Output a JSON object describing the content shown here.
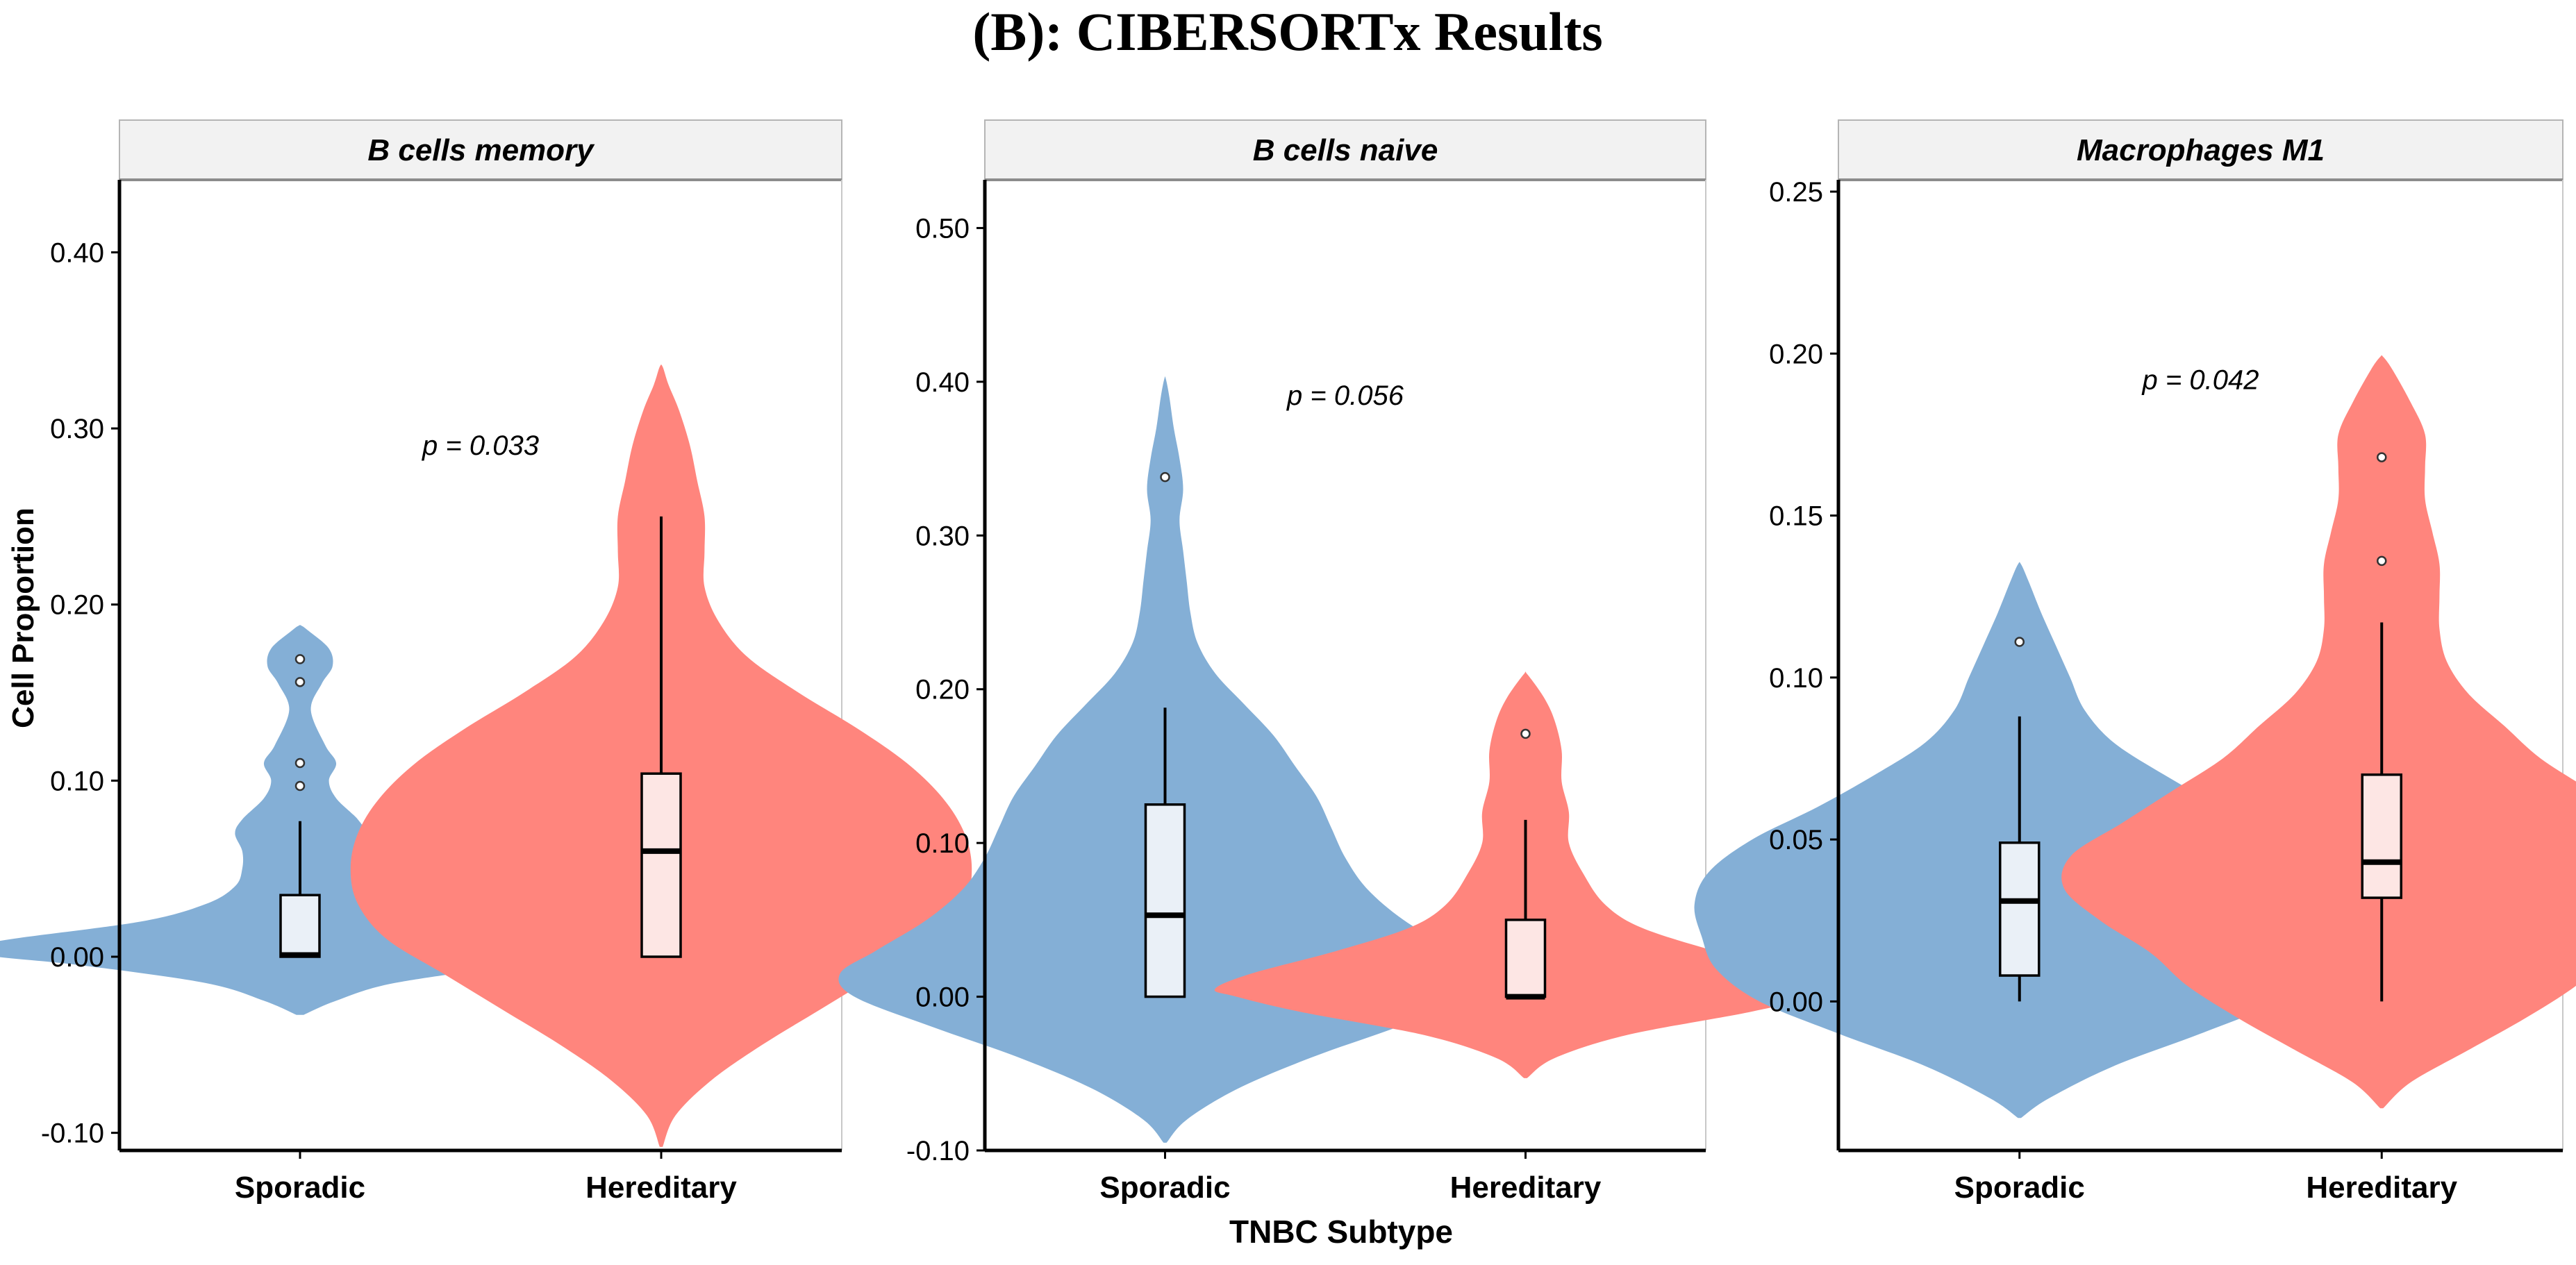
{
  "figure": {
    "title": "(B): CIBERSORTx Results",
    "y_axis_label": "Cell Proportion",
    "x_axis_label": "TNBC Subtype"
  },
  "colors": {
    "sporadic_fill": "#84AFD6",
    "hereditary_fill": "#FF857D",
    "sporadic_box": "#EAF0F7",
    "hereditary_box": "#FDE6E4",
    "strip_fill": "#F2F2F2",
    "axis": "#000000"
  },
  "chart_data": [
    {
      "type": "violin",
      "title": "B cells memory",
      "categories": [
        "Sporadic",
        "Hereditary"
      ],
      "ylim": [
        -0.11,
        0.44
      ],
      "yticks": [
        -0.1,
        0.0,
        0.1,
        0.2,
        0.3,
        0.4
      ],
      "ytick_labels": [
        "-0.10",
        "0.00",
        "0.10",
        "0.20",
        "0.30",
        "0.40"
      ],
      "annotation": {
        "text": "p = 0.033",
        "x": 1.5,
        "y": 0.285
      },
      "violins": [
        {
          "group": "Sporadic",
          "min": -0.033,
          "max": 0.188,
          "profile": [
            [
              -0.033,
              0.005
            ],
            [
              -0.025,
              0.05
            ],
            [
              -0.015,
              0.13
            ],
            [
              -0.005,
              0.3
            ],
            [
              0.0,
              0.42
            ],
            [
              0.004,
              0.47
            ],
            [
              0.01,
              0.4
            ],
            [
              0.02,
              0.22
            ],
            [
              0.03,
              0.13
            ],
            [
              0.04,
              0.09
            ],
            [
              0.05,
              0.08
            ],
            [
              0.06,
              0.08
            ],
            [
              0.07,
              0.09
            ],
            [
              0.078,
              0.08
            ],
            [
              0.09,
              0.05
            ],
            [
              0.1,
              0.04
            ],
            [
              0.11,
              0.05
            ],
            [
              0.12,
              0.035
            ],
            [
              0.14,
              0.015
            ],
            [
              0.155,
              0.03
            ],
            [
              0.165,
              0.045
            ],
            [
              0.175,
              0.04
            ],
            [
              0.185,
              0.012
            ],
            [
              0.188,
              0.002
            ]
          ],
          "box": {
            "q1": 0.0,
            "median": 0.001,
            "q3": 0.035,
            "whisker_low": 0.0,
            "whisker_high": 0.077
          },
          "outliers": [
            0.097,
            0.11,
            0.156,
            0.169
          ]
        },
        {
          "group": "Hereditary",
          "min": -0.108,
          "max": 0.335,
          "profile": [
            [
              -0.108,
              0.002
            ],
            [
              -0.09,
              0.02
            ],
            [
              -0.07,
              0.07
            ],
            [
              -0.05,
              0.14
            ],
            [
              -0.03,
              0.22
            ],
            [
              -0.01,
              0.3
            ],
            [
              0.01,
              0.38
            ],
            [
              0.03,
              0.42
            ],
            [
              0.05,
              0.43
            ],
            [
              0.07,
              0.42
            ],
            [
              0.09,
              0.39
            ],
            [
              0.11,
              0.34
            ],
            [
              0.13,
              0.27
            ],
            [
              0.15,
              0.19
            ],
            [
              0.17,
              0.12
            ],
            [
              0.19,
              0.08
            ],
            [
              0.21,
              0.06
            ],
            [
              0.23,
              0.06
            ],
            [
              0.25,
              0.06
            ],
            [
              0.27,
              0.05
            ],
            [
              0.29,
              0.04
            ],
            [
              0.31,
              0.025
            ],
            [
              0.325,
              0.01
            ],
            [
              0.335,
              0.002
            ]
          ],
          "box": {
            "q1": 0.0,
            "median": 0.06,
            "q3": 0.104,
            "whisker_low": 0.0,
            "whisker_high": 0.25
          },
          "outliers": []
        }
      ]
    },
    {
      "type": "violin",
      "title": "B cells naive",
      "categories": [
        "Sporadic",
        "Hereditary"
      ],
      "ylim": [
        -0.1,
        0.53
      ],
      "yticks": [
        -0.1,
        0.0,
        0.1,
        0.2,
        0.3,
        0.4,
        0.5
      ],
      "ytick_labels": [
        "-0.10",
        "0.00",
        "0.10",
        "0.20",
        "0.30",
        "0.40",
        "0.50"
      ],
      "annotation": {
        "text": "p = 0.056",
        "x": 1.5,
        "y": 0.385
      },
      "violins": [
        {
          "group": "Sporadic",
          "min": -0.095,
          "max": 0.402,
          "profile": [
            [
              -0.095,
              0.002
            ],
            [
              -0.08,
              0.03
            ],
            [
              -0.06,
              0.1
            ],
            [
              -0.04,
              0.2
            ],
            [
              -0.02,
              0.32
            ],
            [
              0.0,
              0.43
            ],
            [
              0.015,
              0.45
            ],
            [
              0.03,
              0.4
            ],
            [
              0.05,
              0.33
            ],
            [
              0.07,
              0.28
            ],
            [
              0.09,
              0.25
            ],
            [
              0.11,
              0.23
            ],
            [
              0.13,
              0.21
            ],
            [
              0.15,
              0.18
            ],
            [
              0.17,
              0.15
            ],
            [
              0.19,
              0.11
            ],
            [
              0.21,
              0.07
            ],
            [
              0.23,
              0.045
            ],
            [
              0.25,
              0.035
            ],
            [
              0.27,
              0.03
            ],
            [
              0.29,
              0.025
            ],
            [
              0.31,
              0.02
            ],
            [
              0.33,
              0.025
            ],
            [
              0.35,
              0.02
            ],
            [
              0.37,
              0.012
            ],
            [
              0.39,
              0.006
            ],
            [
              0.402,
              0.001
            ]
          ],
          "box": {
            "q1": 0.0,
            "median": 0.053,
            "q3": 0.125,
            "whisker_low": 0.0,
            "whisker_high": 0.188
          },
          "outliers": [
            0.338
          ]
        },
        {
          "group": "Hereditary",
          "min": -0.053,
          "max": 0.21,
          "profile": [
            [
              -0.053,
              0.002
            ],
            [
              -0.04,
              0.04
            ],
            [
              -0.025,
              0.14
            ],
            [
              -0.01,
              0.31
            ],
            [
              0.0,
              0.4
            ],
            [
              0.005,
              0.43
            ],
            [
              0.015,
              0.38
            ],
            [
              0.03,
              0.26
            ],
            [
              0.045,
              0.16
            ],
            [
              0.06,
              0.11
            ],
            [
              0.08,
              0.08
            ],
            [
              0.1,
              0.06
            ],
            [
              0.12,
              0.06
            ],
            [
              0.14,
              0.05
            ],
            [
              0.16,
              0.05
            ],
            [
              0.18,
              0.04
            ],
            [
              0.195,
              0.025
            ],
            [
              0.21,
              0.002
            ]
          ],
          "box": {
            "q1": 0.0,
            "median": 0.0,
            "q3": 0.05,
            "whisker_low": 0.0,
            "whisker_high": 0.115
          },
          "outliers": [
            0.171
          ]
        }
      ]
    },
    {
      "type": "violin",
      "title": "Macrophages M1",
      "categories": [
        "Sporadic",
        "Hereditary"
      ],
      "ylim": [
        -0.046,
        0.253
      ],
      "yticks": [
        0.0,
        0.05,
        0.1,
        0.15,
        0.2,
        0.25
      ],
      "ytick_labels": [
        "0.00",
        "0.05",
        "0.10",
        "0.15",
        "0.20",
        "0.25"
      ],
      "annotation": {
        "text": "p = 0.042",
        "x": 1.5,
        "y": 0.189
      },
      "violins": [
        {
          "group": "Sporadic",
          "min": -0.036,
          "max": 0.135,
          "profile": [
            [
              -0.036,
              0.002
            ],
            [
              -0.03,
              0.04
            ],
            [
              -0.02,
              0.13
            ],
            [
              -0.01,
              0.25
            ],
            [
              0.0,
              0.36
            ],
            [
              0.01,
              0.42
            ],
            [
              0.02,
              0.44
            ],
            [
              0.03,
              0.45
            ],
            [
              0.04,
              0.43
            ],
            [
              0.05,
              0.37
            ],
            [
              0.06,
              0.28
            ],
            [
              0.07,
              0.2
            ],
            [
              0.08,
              0.13
            ],
            [
              0.09,
              0.09
            ],
            [
              0.1,
              0.07
            ],
            [
              0.11,
              0.05
            ],
            [
              0.12,
              0.03
            ],
            [
              0.13,
              0.012
            ],
            [
              0.135,
              0.002
            ]
          ],
          "box": {
            "q1": 0.008,
            "median": 0.031,
            "q3": 0.049,
            "whisker_low": 0.0,
            "whisker_high": 0.088
          },
          "outliers": [
            0.111
          ]
        },
        {
          "group": "Hereditary",
          "min": -0.033,
          "max": 0.199,
          "profile": [
            [
              -0.033,
              0.002
            ],
            [
              -0.025,
              0.04
            ],
            [
              -0.015,
              0.12
            ],
            [
              -0.005,
              0.2
            ],
            [
              0.005,
              0.27
            ],
            [
              0.015,
              0.32
            ],
            [
              0.025,
              0.39
            ],
            [
              0.035,
              0.44
            ],
            [
              0.045,
              0.43
            ],
            [
              0.055,
              0.36
            ],
            [
              0.065,
              0.29
            ],
            [
              0.075,
              0.22
            ],
            [
              0.085,
              0.17
            ],
            [
              0.095,
              0.12
            ],
            [
              0.105,
              0.09
            ],
            [
              0.115,
              0.08
            ],
            [
              0.125,
              0.08
            ],
            [
              0.135,
              0.08
            ],
            [
              0.145,
              0.07
            ],
            [
              0.155,
              0.06
            ],
            [
              0.165,
              0.06
            ],
            [
              0.175,
              0.06
            ],
            [
              0.185,
              0.04
            ],
            [
              0.195,
              0.015
            ],
            [
              0.199,
              0.002
            ]
          ],
          "box": {
            "q1": 0.032,
            "median": 0.043,
            "q3": 0.07,
            "whisker_low": 0.0,
            "whisker_high": 0.117
          },
          "outliers": [
            0.136,
            0.168
          ]
        }
      ]
    }
  ]
}
